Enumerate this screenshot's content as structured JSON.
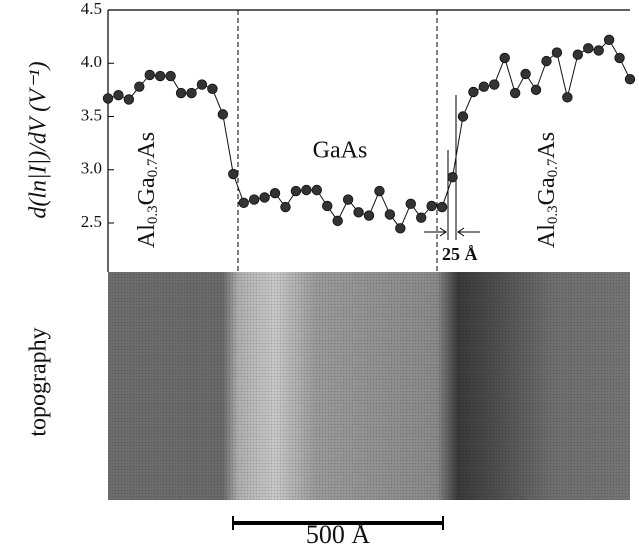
{
  "chart_data": {
    "type": "line",
    "y_label": "d(ln|I|)/dV (V⁻¹)",
    "series": [
      {
        "color": "#111111",
        "values": [
          3.67,
          3.7,
          3.66,
          3.78,
          3.89,
          3.88,
          3.88,
          3.72,
          3.72,
          3.8,
          3.76,
          3.52,
          2.96,
          2.69,
          2.72,
          2.74,
          2.78,
          2.65,
          2.8,
          2.81,
          2.81,
          2.66,
          2.52,
          2.72,
          2.6,
          2.57,
          2.8,
          2.58,
          2.45,
          2.68,
          2.55,
          2.66,
          2.65,
          2.93,
          3.5,
          3.73,
          3.78,
          3.8,
          4.05,
          3.72,
          3.9,
          3.75,
          4.02,
          4.1,
          3.68,
          4.08,
          4.14,
          4.12,
          4.22,
          4.05,
          3.85
        ]
      }
    ],
    "ylim": [
      2.04,
      4.5
    ],
    "yticks": [
      2.5,
      {
        "value": 3,
        "label": "3.0"
      },
      3.5,
      {
        "value": 4,
        "label": "4.0"
      },
      4.5
    ],
    "annotations": {
      "left_layer": [
        "Al",
        "0.3",
        "Ga",
        "0.7",
        "As"
      ],
      "middle_layer": "GaAs",
      "right_layer": [
        "Al",
        "0.3",
        "Ga",
        "0.7",
        "As"
      ],
      "interface_width": "25 Å"
    },
    "image_label": "topography",
    "scale_bar": "500 Å"
  }
}
